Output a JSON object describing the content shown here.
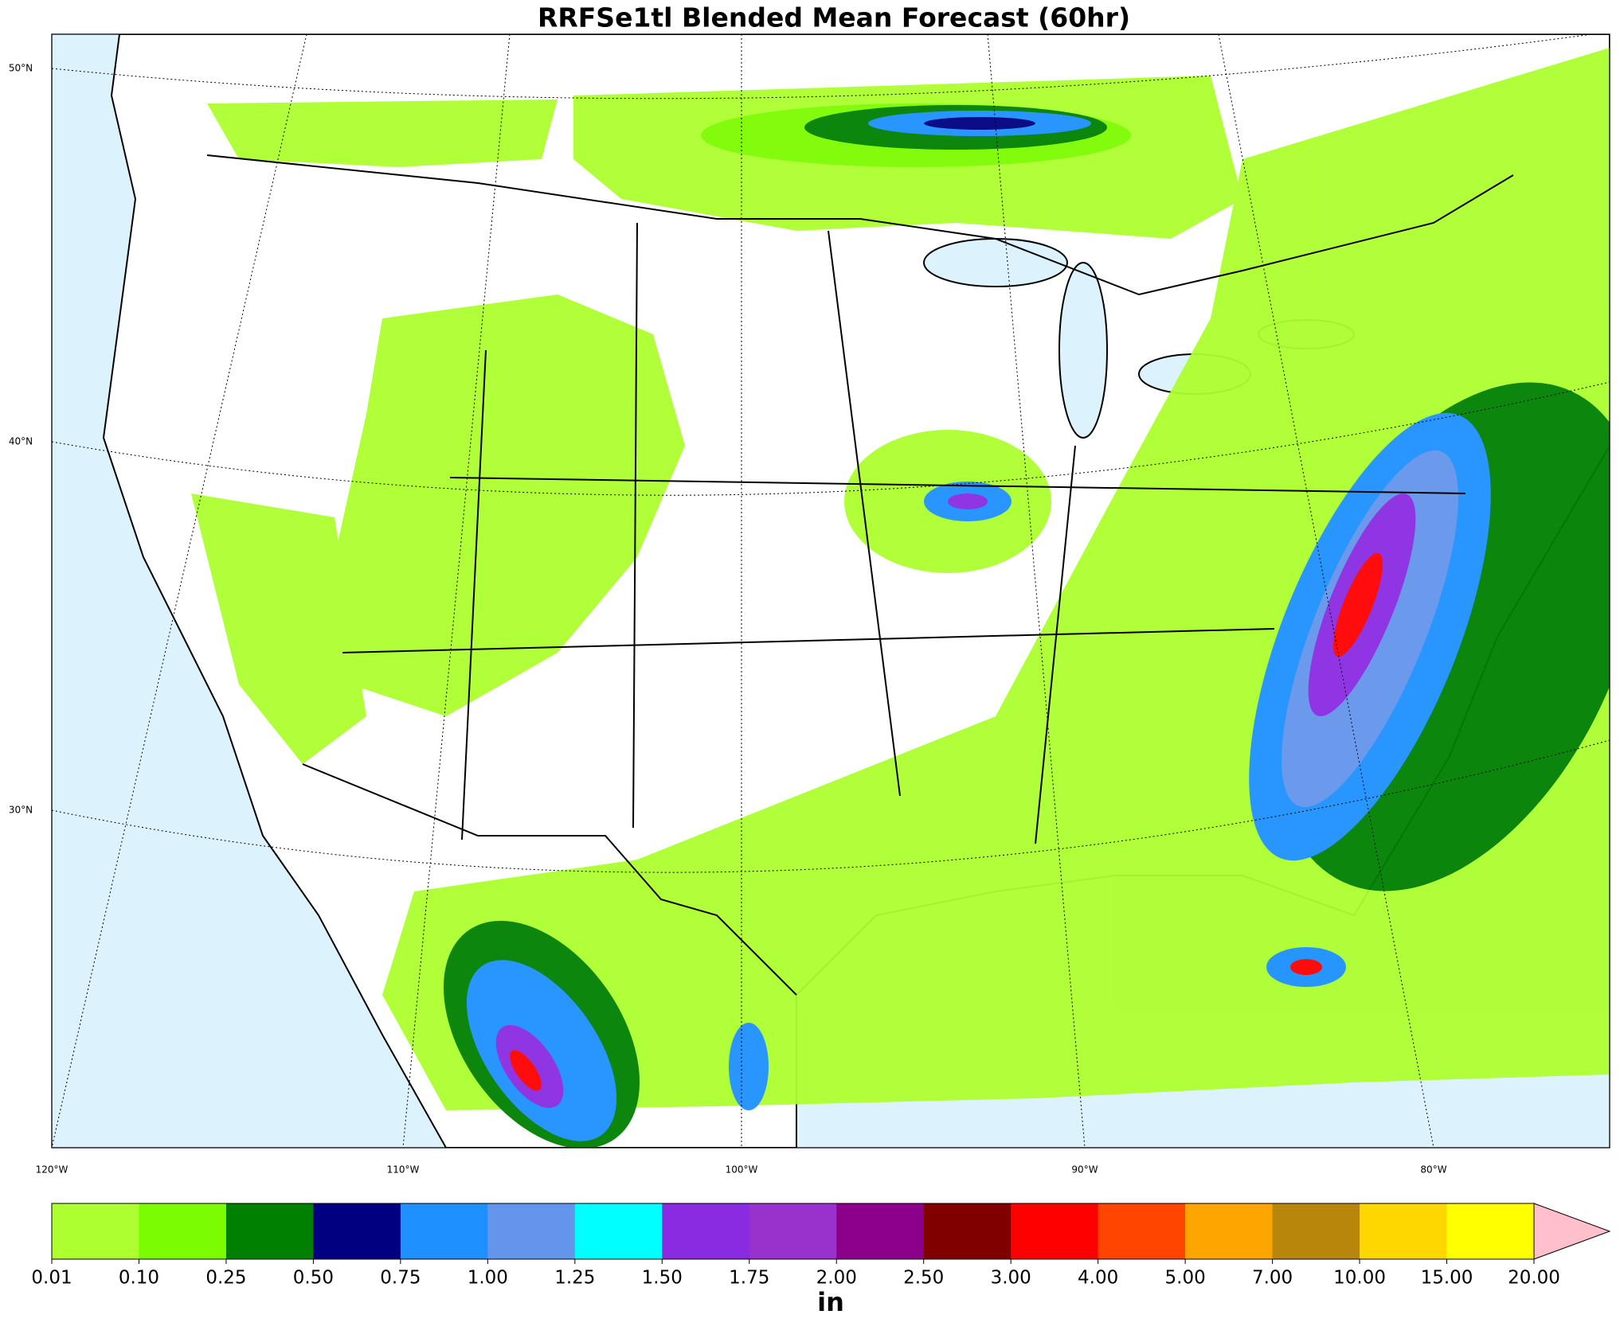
{
  "title": "RRFSe1tl Blended Mean Forecast (60hr)",
  "map": {
    "lat_labels": [
      "50°N",
      "40°N",
      "30°N"
    ],
    "lon_labels": [
      "120°W",
      "110°W",
      "100°W",
      "90°W",
      "80°W"
    ]
  },
  "colorbar": {
    "label": "in",
    "boundaries": [
      {
        "value": 0.01,
        "label": "0.01"
      },
      {
        "value": 0.1,
        "label": "0.10"
      },
      {
        "value": 0.25,
        "label": "0.25"
      },
      {
        "value": 0.5,
        "label": "0.50"
      },
      {
        "value": 0.75,
        "label": "0.75"
      },
      {
        "value": 1,
        "label": "1.00"
      },
      {
        "value": 1.25,
        "label": "1.25"
      },
      {
        "value": 1.5,
        "label": "1.50"
      },
      {
        "value": 1.75,
        "label": "1.75"
      },
      {
        "value": 2,
        "label": "2.00"
      },
      {
        "value": 2.5,
        "label": "2.50"
      },
      {
        "value": 3,
        "label": "3.00"
      },
      {
        "value": 4,
        "label": "4.00"
      },
      {
        "value": 5,
        "label": "5.00"
      },
      {
        "value": 7,
        "label": "7.00"
      },
      {
        "value": 10,
        "label": "10.00"
      },
      {
        "value": 15,
        "label": "15.00"
      },
      {
        "value": 20,
        "label": "20.00"
      }
    ],
    "colors": [
      "#adff2f",
      "#7cfc00",
      "#008000",
      "#000080",
      "#1e90ff",
      "#6495ed",
      "#00ffff",
      "#8a2be2",
      "#9932cc",
      "#8b008b",
      "#800000",
      "#ff0000",
      "#ff4500",
      "#ffa500",
      "#b8860b",
      "#ffd700",
      "#ffff00"
    ],
    "extend_color": "#ffc0cb"
  }
}
